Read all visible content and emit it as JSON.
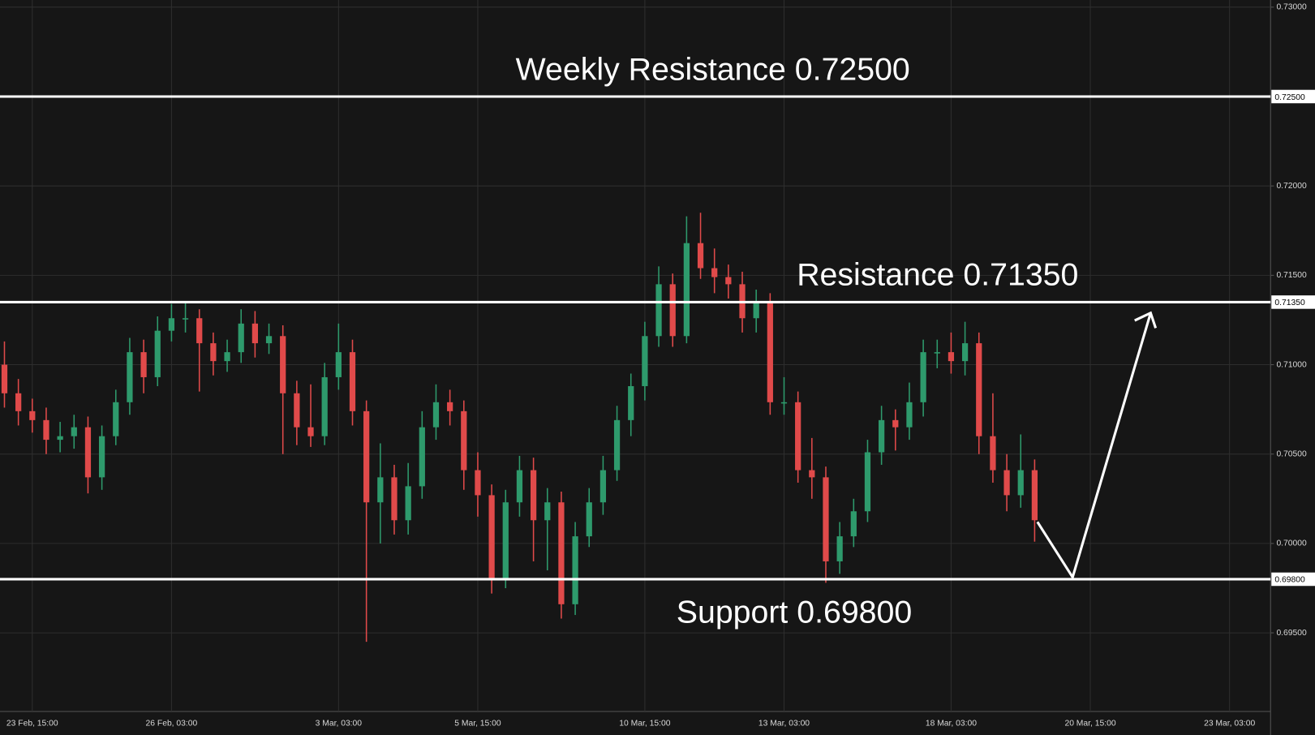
{
  "chart_data": {
    "type": "candlestick",
    "categories": [
      null,
      null,
      "23 Feb, 15:00",
      null,
      null,
      null,
      null,
      null,
      null,
      null,
      null,
      null,
      "26 Feb, 03:00",
      null,
      null,
      null,
      null,
      null,
      null,
      null,
      null,
      null,
      null,
      null,
      "3 Mar, 03:00",
      null,
      null,
      null,
      null,
      null,
      null,
      null,
      null,
      null,
      "5 Mar, 15:00",
      null,
      null,
      null,
      null,
      null,
      null,
      null,
      null,
      null,
      null,
      null,
      "10 Mar, 15:00",
      null,
      null,
      null,
      null,
      null,
      null,
      null,
      null,
      null,
      "13 Mar, 03:00",
      null,
      null,
      null,
      null,
      null,
      null,
      null,
      null,
      null,
      null,
      null,
      "18 Mar, 03:00",
      null,
      null,
      null,
      null,
      null,
      null,
      null,
      null,
      null,
      "20 Mar, 15:00",
      null,
      null,
      null,
      null,
      null,
      null,
      null,
      null,
      null,
      "23 Mar, 03:00",
      null,
      null
    ],
    "open": [
      0.71,
      0.7084,
      0.7074,
      0.7069,
      0.7058,
      0.706,
      0.7065,
      0.7037,
      0.706,
      0.7079,
      0.7107,
      0.7093,
      0.7119,
      0.7126,
      0.7126,
      0.7112,
      0.7102,
      0.7107,
      0.7123,
      0.7112,
      0.7116,
      0.7084,
      0.7065,
      0.706,
      0.7093,
      0.7107,
      0.7074,
      0.7023,
      0.7037,
      0.7013,
      0.7032,
      0.7065,
      0.7079,
      0.7074,
      0.7041,
      0.7027,
      0.698,
      0.7023,
      0.7041,
      0.7013,
      0.7023,
      0.6966,
      0.7004,
      0.7023,
      0.7041,
      0.7069,
      0.7088,
      0.7116,
      0.7145,
      0.7116,
      0.7168,
      0.7154,
      0.7149,
      0.7145,
      0.7126,
      0.7135,
      0.7079,
      0.7079,
      0.7041,
      0.7037,
      0.699,
      0.7004,
      0.7018,
      0.7051,
      0.7069,
      0.7065,
      0.7079,
      0.7107,
      0.7107,
      0.7102,
      0.7112,
      0.706,
      0.7041,
      0.7027,
      0.7041,
      null,
      null,
      null,
      null,
      null,
      null,
      null,
      null,
      null,
      null,
      null,
      null,
      null,
      null,
      null,
      null
    ],
    "high": [
      0.7113,
      0.7092,
      0.7081,
      0.7076,
      0.7068,
      0.7072,
      0.7071,
      0.7066,
      0.7086,
      0.7115,
      0.7114,
      0.7127,
      0.7134,
      0.7135,
      0.7131,
      0.7118,
      0.7114,
      0.7131,
      0.713,
      0.7123,
      0.7122,
      0.7091,
      0.7089,
      0.7101,
      0.7123,
      0.7114,
      0.708,
      0.7056,
      0.7044,
      0.7045,
      0.7074,
      0.7089,
      0.7086,
      0.708,
      0.7051,
      0.7033,
      0.703,
      0.7049,
      0.7048,
      0.7031,
      0.7029,
      0.7012,
      0.7031,
      0.7049,
      0.7077,
      0.7095,
      0.7124,
      0.7155,
      0.7151,
      0.7183,
      0.7185,
      0.7165,
      0.7156,
      0.7152,
      0.7142,
      0.714,
      0.7093,
      0.7085,
      0.7059,
      0.7043,
      0.7012,
      0.7025,
      0.7058,
      0.7077,
      0.7075,
      0.709,
      0.7114,
      0.7114,
      0.7118,
      0.7124,
      0.7118,
      0.7084,
      0.705,
      0.7061,
      0.7047,
      null,
      null,
      null,
      null,
      null,
      null,
      null,
      null,
      null,
      null,
      null,
      null,
      null,
      null,
      null,
      null
    ],
    "low": [
      0.7076,
      0.7066,
      0.7062,
      0.705,
      0.7051,
      0.7053,
      0.7028,
      0.703,
      0.7055,
      0.7072,
      0.7084,
      0.7088,
      0.7113,
      0.7118,
      0.7085,
      0.7094,
      0.7096,
      0.7101,
      0.7104,
      0.7106,
      0.705,
      0.7055,
      0.7054,
      0.7055,
      0.7086,
      0.7066,
      0.6945,
      0.7,
      0.7005,
      0.7005,
      0.7025,
      0.7058,
      0.7066,
      0.703,
      0.7015,
      0.6972,
      0.6975,
      0.7015,
      0.699,
      0.6985,
      0.6958,
      0.696,
      0.6998,
      0.7016,
      0.7035,
      0.706,
      0.708,
      0.711,
      0.711,
      0.7112,
      0.7148,
      0.714,
      0.7137,
      0.7118,
      0.7118,
      0.7072,
      0.7072,
      0.7034,
      0.7025,
      0.6978,
      0.6983,
      0.6998,
      0.7012,
      0.7044,
      0.7052,
      0.7058,
      0.7071,
      0.7098,
      0.7095,
      0.7094,
      0.705,
      0.7034,
      0.7018,
      0.702,
      0.7001,
      null,
      null,
      null,
      null,
      null,
      null,
      null,
      null,
      null,
      null,
      null,
      null,
      null,
      null,
      null,
      null
    ],
    "close": [
      0.7084,
      0.7074,
      0.7069,
      0.7058,
      0.706,
      0.7065,
      0.7037,
      0.706,
      0.7079,
      0.7107,
      0.7093,
      0.7119,
      0.7126,
      0.7126,
      0.7112,
      0.7102,
      0.7107,
      0.7123,
      0.7112,
      0.7116,
      0.7084,
      0.7065,
      0.706,
      0.7093,
      0.7107,
      0.7074,
      0.7023,
      0.7037,
      0.7013,
      0.7032,
      0.7065,
      0.7079,
      0.7074,
      0.7041,
      0.7027,
      0.698,
      0.7023,
      0.7041,
      0.7013,
      0.7023,
      0.6966,
      0.7004,
      0.7023,
      0.7041,
      0.7069,
      0.7088,
      0.7116,
      0.7145,
      0.7116,
      0.7168,
      0.7154,
      0.7149,
      0.7145,
      0.7126,
      0.7135,
      0.7079,
      0.7079,
      0.7041,
      0.7037,
      0.699,
      0.7004,
      0.7018,
      0.7051,
      0.7069,
      0.7065,
      0.7079,
      0.7107,
      0.7107,
      0.7102,
      0.7112,
      0.706,
      0.7041,
      0.7027,
      0.7041,
      0.7013,
      null,
      null,
      null,
      null,
      null,
      null,
      null,
      null,
      null,
      null,
      null,
      null,
      null,
      null,
      null,
      null
    ],
    "up_color": "#2e9a6c",
    "down_color": "#e04a4a",
    "ylim": [
      0.6906,
      0.7304
    ],
    "yticks": [
      {
        "value": 0.695,
        "label": "0.69500"
      },
      {
        "value": 0.7,
        "label": "0.70000"
      },
      {
        "value": 0.705,
        "label": "0.70500"
      },
      {
        "value": 0.71,
        "label": "0.71000"
      },
      {
        "value": 0.715,
        "label": "0.71500"
      },
      {
        "value": 0.72,
        "label": "0.72000"
      },
      {
        "value": 0.73,
        "label": "0.73000"
      }
    ],
    "grid": true,
    "levels": [
      {
        "value": 0.725,
        "label": "0.72500",
        "text": "Weekly Resistance 0.72500"
      },
      {
        "value": 0.7135,
        "label": "0.71350",
        "text": "Resistance 0.71350"
      },
      {
        "value": 0.698,
        "label": "0.69800",
        "text": "Support 0.69800"
      }
    ]
  }
}
